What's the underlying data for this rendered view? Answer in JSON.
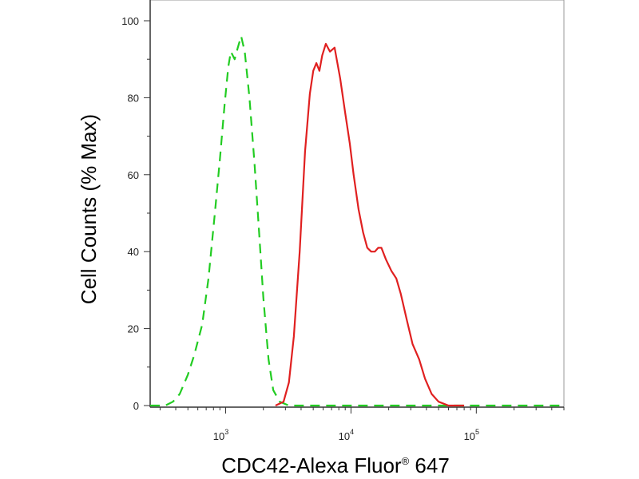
{
  "chart_data": {
    "type": "line",
    "title": "",
    "xlabel": "CDC42-Alexa Fluor",
    "xlabel_superscript": "®",
    "xlabel_suffix": " 647",
    "ylabel": "Cell Counts (% Max)",
    "x_scale": "log",
    "xlim": [
      250,
      500000
    ],
    "ylim": [
      0,
      100
    ],
    "grid": false,
    "x_major_ticks": [
      {
        "value": 1000,
        "base": "10",
        "exponent": "3"
      },
      {
        "value": 10000,
        "base": "10",
        "exponent": "4"
      },
      {
        "value": 100000,
        "base": "10",
        "exponent": "5"
      }
    ],
    "y_ticks": [
      {
        "value": 0,
        "label": "0"
      },
      {
        "value": 20,
        "label": "20"
      },
      {
        "value": 40,
        "label": "40"
      },
      {
        "value": 60,
        "label": "60"
      },
      {
        "value": 80,
        "label": "80"
      },
      {
        "value": 100,
        "label": "100"
      }
    ],
    "series": [
      {
        "color": "#22cc22",
        "style": "dashed",
        "points": [
          [
            250,
            0
          ],
          [
            330,
            0
          ],
          [
            380,
            1
          ],
          [
            430,
            3
          ],
          [
            500,
            8
          ],
          [
            560,
            13
          ],
          [
            650,
            21
          ],
          [
            730,
            33
          ],
          [
            820,
            50
          ],
          [
            900,
            64
          ],
          [
            980,
            78
          ],
          [
            1050,
            88
          ],
          [
            1100,
            92
          ],
          [
            1180,
            90
          ],
          [
            1250,
            93
          ],
          [
            1330,
            96
          ],
          [
            1420,
            92
          ],
          [
            1550,
            80
          ],
          [
            1700,
            63
          ],
          [
            1850,
            45
          ],
          [
            2000,
            28
          ],
          [
            2200,
            12
          ],
          [
            2400,
            4
          ],
          [
            2700,
            1
          ],
          [
            3200,
            0
          ],
          [
            20000,
            0
          ],
          [
            60000,
            0
          ],
          [
            500000,
            0
          ]
        ]
      },
      {
        "color": "#e02020",
        "style": "solid",
        "points": [
          [
            2500,
            0
          ],
          [
            2900,
            1
          ],
          [
            3200,
            6
          ],
          [
            3500,
            18
          ],
          [
            3900,
            40
          ],
          [
            4300,
            66
          ],
          [
            4700,
            81
          ],
          [
            5000,
            87
          ],
          [
            5300,
            89
          ],
          [
            5600,
            87
          ],
          [
            5900,
            91
          ],
          [
            6300,
            94
          ],
          [
            6800,
            92
          ],
          [
            7400,
            93
          ],
          [
            8200,
            85
          ],
          [
            9000,
            76
          ],
          [
            9800,
            68
          ],
          [
            10500,
            60
          ],
          [
            11500,
            51
          ],
          [
            12500,
            45
          ],
          [
            13500,
            41
          ],
          [
            14500,
            40
          ],
          [
            15500,
            40
          ],
          [
            16500,
            41
          ],
          [
            17500,
            41
          ],
          [
            19000,
            38
          ],
          [
            21000,
            35
          ],
          [
            23000,
            33
          ],
          [
            25000,
            29
          ],
          [
            28000,
            22
          ],
          [
            31000,
            16
          ],
          [
            35000,
            12
          ],
          [
            39000,
            7
          ],
          [
            44000,
            3
          ],
          [
            50000,
            1
          ],
          [
            60000,
            0
          ],
          [
            80000,
            0
          ]
        ]
      }
    ]
  }
}
